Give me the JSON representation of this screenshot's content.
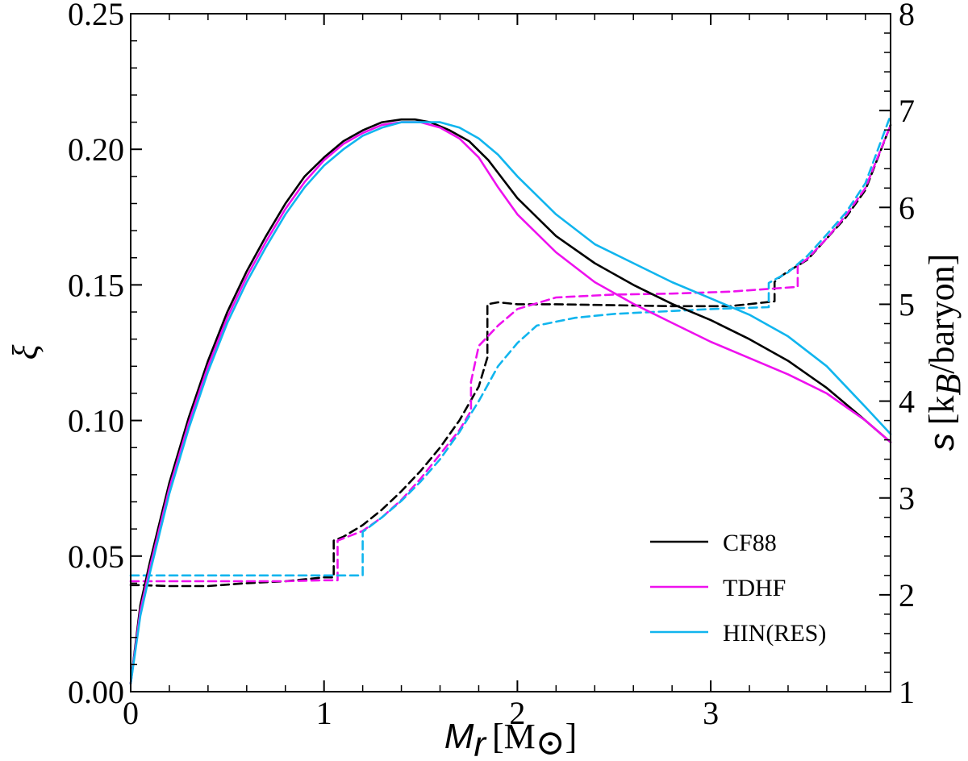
{
  "chart_data": {
    "type": "line",
    "xlabel_var": "M",
    "xlabel_sub": "r",
    "xlabel_unit": "[M",
    "xlabel_unit_symbol": "⊙",
    "xlabel_unit_close": "]",
    "ylabel": "ξ",
    "y2label_var": "s",
    "y2label_unit": "[k",
    "y2label_unit_sub": "B",
    "y2label_unit_close": "/baryon]",
    "xlim": [
      0,
      3.93
    ],
    "ylim": [
      0,
      0.25
    ],
    "y2lim": [
      1,
      8
    ],
    "x_ticks": [
      "0",
      "1",
      "2",
      "3"
    ],
    "y_ticks": [
      "0.00",
      "0.05",
      "0.10",
      "0.15",
      "0.20",
      "0.25"
    ],
    "y2_ticks": [
      "1",
      "2",
      "3",
      "4",
      "5",
      "6",
      "7",
      "8"
    ],
    "legend": [
      {
        "label": "CF88",
        "color": "#000000"
      },
      {
        "label": "TDHF",
        "color": "#ee11ee"
      },
      {
        "label": "HIN(RES)",
        "color": "#11b5ee"
      }
    ],
    "series_compactness": [
      {
        "name": "CF88",
        "axis": "left",
        "style": "solid",
        "color": "#000000",
        "x": [
          0,
          0.05,
          0.1,
          0.2,
          0.3,
          0.4,
          0.5,
          0.6,
          0.7,
          0.8,
          0.9,
          1.0,
          1.1,
          1.2,
          1.3,
          1.4,
          1.47,
          1.55,
          1.65,
          1.75,
          1.85,
          2.0,
          2.2,
          2.4,
          2.6,
          2.8,
          3.0,
          3.2,
          3.4,
          3.6,
          3.8,
          3.93
        ],
        "y": [
          0.003,
          0.032,
          0.048,
          0.077,
          0.101,
          0.122,
          0.14,
          0.155,
          0.168,
          0.18,
          0.19,
          0.197,
          0.203,
          0.207,
          0.21,
          0.211,
          0.211,
          0.21,
          0.207,
          0.203,
          0.196,
          0.182,
          0.168,
          0.158,
          0.15,
          0.143,
          0.137,
          0.13,
          0.122,
          0.112,
          0.1,
          0.092
        ]
      },
      {
        "name": "TDHF",
        "axis": "left",
        "style": "solid",
        "color": "#ee11ee",
        "x": [
          0,
          0.05,
          0.1,
          0.2,
          0.3,
          0.4,
          0.5,
          0.6,
          0.7,
          0.8,
          0.9,
          1.0,
          1.1,
          1.2,
          1.3,
          1.4,
          1.5,
          1.6,
          1.7,
          1.8,
          1.9,
          2.0,
          2.2,
          2.4,
          2.6,
          2.8,
          3.0,
          3.2,
          3.4,
          3.6,
          3.8,
          3.93
        ],
        "y": [
          0.003,
          0.03,
          0.046,
          0.075,
          0.099,
          0.12,
          0.138,
          0.153,
          0.166,
          0.178,
          0.188,
          0.196,
          0.202,
          0.206,
          0.209,
          0.21,
          0.21,
          0.208,
          0.204,
          0.197,
          0.186,
          0.176,
          0.162,
          0.151,
          0.143,
          0.136,
          0.129,
          0.123,
          0.117,
          0.11,
          0.1,
          0.092
        ]
      },
      {
        "name": "HIN(RES)",
        "axis": "left",
        "style": "solid",
        "color": "#11b5ee",
        "x": [
          0,
          0.05,
          0.1,
          0.2,
          0.3,
          0.4,
          0.5,
          0.6,
          0.7,
          0.8,
          0.9,
          1.0,
          1.1,
          1.2,
          1.3,
          1.4,
          1.5,
          1.6,
          1.7,
          1.8,
          1.9,
          2.0,
          2.2,
          2.4,
          2.6,
          2.8,
          3.0,
          3.2,
          3.4,
          3.6,
          3.8,
          3.93
        ],
        "y": [
          0.003,
          0.028,
          0.044,
          0.073,
          0.097,
          0.118,
          0.136,
          0.151,
          0.164,
          0.176,
          0.186,
          0.194,
          0.2,
          0.205,
          0.208,
          0.21,
          0.21,
          0.21,
          0.208,
          0.204,
          0.198,
          0.19,
          0.176,
          0.165,
          0.158,
          0.151,
          0.145,
          0.139,
          0.131,
          0.12,
          0.105,
          0.095
        ]
      }
    ],
    "series_entropy": [
      {
        "name": "CF88",
        "axis": "right",
        "style": "dashed",
        "color": "#000000",
        "x": [
          0,
          0.05,
          0.2,
          0.4,
          0.6,
          0.8,
          1.0,
          1.05,
          1.05,
          1.1,
          1.2,
          1.3,
          1.4,
          1.5,
          1.6,
          1.7,
          1.8,
          1.845,
          1.845,
          1.9,
          2.0,
          2.2,
          2.5,
          2.8,
          3.1,
          3.33,
          3.33,
          3.35,
          3.4,
          3.5,
          3.6,
          3.7,
          3.8,
          3.93
        ],
        "y": [
          2.1,
          2.1,
          2.09,
          2.09,
          2.12,
          2.14,
          2.18,
          2.18,
          2.56,
          2.6,
          2.72,
          2.88,
          3.07,
          3.28,
          3.52,
          3.8,
          4.15,
          4.45,
          5.0,
          5.02,
          5.0,
          5.0,
          4.99,
          4.98,
          4.98,
          5.03,
          5.23,
          5.27,
          5.34,
          5.46,
          5.68,
          5.9,
          6.18,
          6.85
        ]
      },
      {
        "name": "TDHF",
        "axis": "right",
        "style": "dashed",
        "color": "#ee11ee",
        "x": [
          0,
          0.05,
          0.2,
          0.4,
          0.6,
          0.8,
          1.0,
          1.07,
          1.07,
          1.2,
          1.3,
          1.4,
          1.5,
          1.6,
          1.7,
          1.76,
          1.76,
          1.8,
          1.9,
          2.0,
          2.2,
          2.5,
          2.8,
          3.1,
          3.45,
          3.45,
          3.5,
          3.6,
          3.7,
          3.8,
          3.93
        ],
        "y": [
          2.14,
          2.14,
          2.14,
          2.14,
          2.14,
          2.14,
          2.15,
          2.15,
          2.56,
          2.66,
          2.8,
          2.98,
          3.2,
          3.45,
          3.7,
          3.9,
          4.2,
          4.57,
          4.78,
          4.95,
          5.07,
          5.1,
          5.11,
          5.13,
          5.18,
          5.4,
          5.47,
          5.68,
          5.92,
          6.2,
          6.85
        ]
      },
      {
        "name": "HIN(RES)",
        "axis": "right",
        "style": "dashed",
        "color": "#11b5ee",
        "x": [
          0,
          0.05,
          0.2,
          0.4,
          0.6,
          0.8,
          1.0,
          1.2,
          1.2,
          1.3,
          1.4,
          1.5,
          1.6,
          1.7,
          1.8,
          1.9,
          2.0,
          2.1,
          2.3,
          2.5,
          2.8,
          3.0,
          3.3,
          3.3,
          3.4,
          3.5,
          3.6,
          3.7,
          3.8,
          3.93
        ],
        "y": [
          2.2,
          2.2,
          2.2,
          2.2,
          2.2,
          2.2,
          2.2,
          2.2,
          2.65,
          2.8,
          2.97,
          3.17,
          3.4,
          3.68,
          4.0,
          4.36,
          4.6,
          4.78,
          4.86,
          4.9,
          4.93,
          4.95,
          4.97,
          5.22,
          5.33,
          5.5,
          5.72,
          5.95,
          6.25,
          6.95
        ]
      }
    ]
  }
}
